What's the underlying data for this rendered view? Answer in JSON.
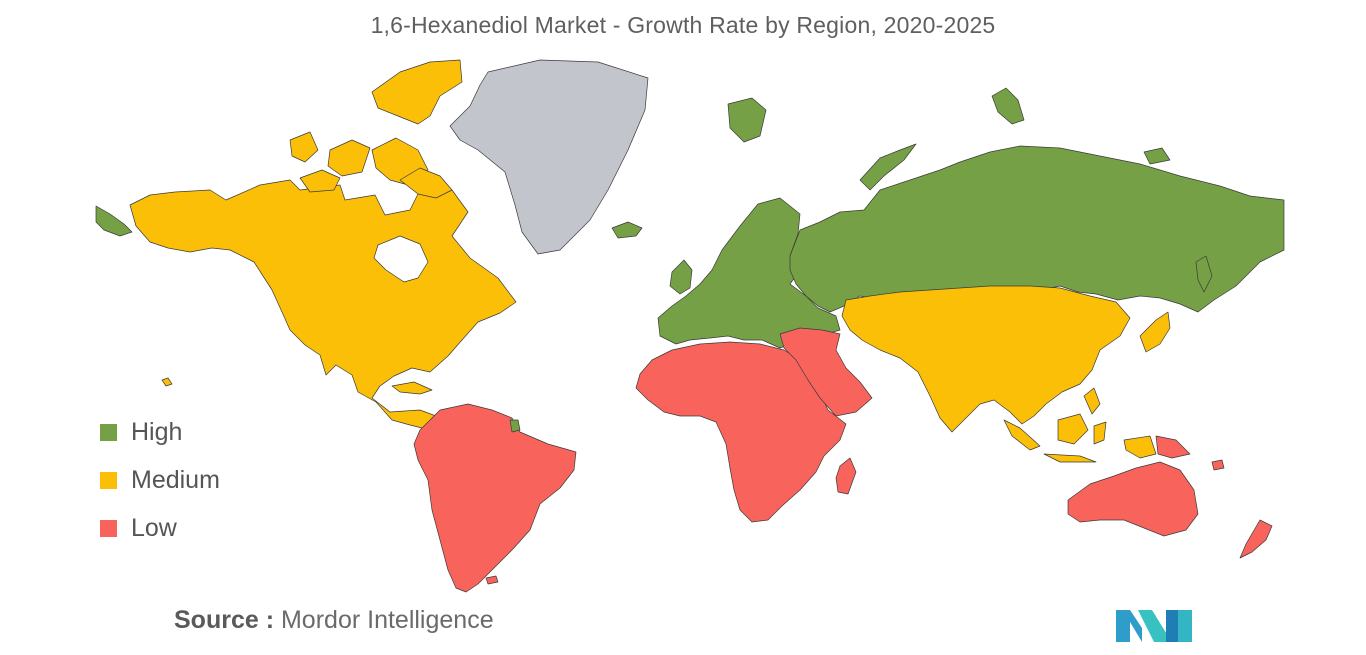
{
  "title": "1,6-Hexanediol Market - Growth Rate by Region, 2020-2025",
  "colors": {
    "high": "#76a045",
    "medium": "#fbbf07",
    "low": "#f8635b",
    "no_data": "#c2c5cc",
    "border": "#3a3a3a"
  },
  "legend": [
    {
      "label": "High",
      "color": "#76a045"
    },
    {
      "label": "Medium",
      "color": "#fbbf07"
    },
    {
      "label": "Low",
      "color": "#f8635b"
    }
  ],
  "regions": [
    {
      "name": "North America",
      "category": "Medium"
    },
    {
      "name": "Greenland",
      "category": "No data"
    },
    {
      "name": "South America",
      "category": "Low"
    },
    {
      "name": "Europe",
      "category": "High"
    },
    {
      "name": "Russia",
      "category": "High"
    },
    {
      "name": "Middle East and Africa",
      "category": "Low"
    },
    {
      "name": "Asia-Pacific",
      "category": "Medium"
    },
    {
      "name": "Australia and New Zealand",
      "category": "Low"
    }
  ],
  "source": {
    "prefix": "Source :",
    "name": "Mordor Intelligence"
  },
  "logo_icon": "mordor-intelligence-logo-icon"
}
